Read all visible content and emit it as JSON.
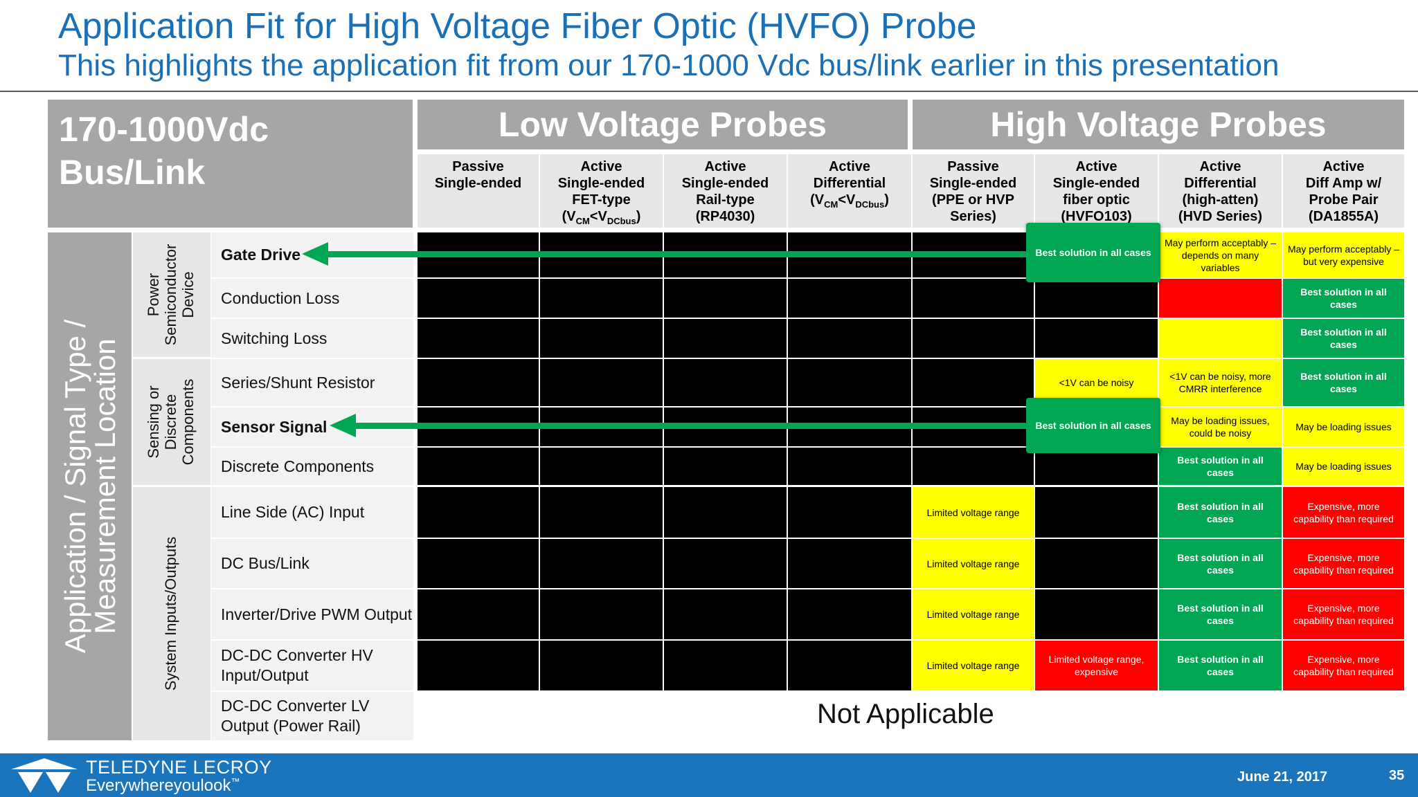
{
  "title": "Application Fit for High Voltage Fiber Optic (HVFO) Probe",
  "subtitle": "This highlights the application fit from our 170-1000 Vdc bus/link earlier in this presentation",
  "corner": {
    "line1": "170-1000Vdc",
    "line2": "Bus/Link"
  },
  "groups": {
    "low": "Low Voltage Probes",
    "high": "High Voltage Probes"
  },
  "columns": [
    {
      "lines": [
        "Passive",
        "Single-ended"
      ]
    },
    {
      "lines": [
        "Active",
        "Single-ended",
        "FET-type"
      ],
      "sub": {
        "pre": "(V",
        "s1": "CM",
        "mid": "<V",
        "s2": "DCbus",
        "post": ")"
      }
    },
    {
      "lines": [
        "Active",
        "Single-ended",
        "Rail-type",
        "(RP4030)"
      ]
    },
    {
      "lines": [
        "Active",
        "Differential"
      ],
      "sub": {
        "pre": "(V",
        "s1": "CM",
        "mid": "<V",
        "s2": "DCbus",
        "post": ")"
      }
    },
    {
      "lines": [
        "Passive",
        "Single-ended",
        "(PPE or HVP",
        "Series)"
      ]
    },
    {
      "lines": [
        "Active",
        "Single-ended",
        "fiber optic",
        "(HVFO103)"
      ]
    },
    {
      "lines": [
        "Active",
        "Differential",
        "(high-atten)",
        "(HVD Series)"
      ]
    },
    {
      "lines": [
        "Active",
        "Diff Amp w/",
        "Probe Pair",
        "(DA1855A)"
      ]
    }
  ],
  "vertical_label": {
    "line1": "Application / Signal Type /",
    "line2": "Measurement Location"
  },
  "row_groups": [
    {
      "line1": "Power",
      "line2": "Semiconductor",
      "line3": "Device"
    },
    {
      "line1": "Sensing or",
      "line2": "Discrete",
      "line3": "Components"
    },
    {
      "line1": "System Inputs/Outputs",
      "line2": "",
      "line3": ""
    }
  ],
  "rows": [
    {
      "label": "Gate Drive",
      "bold": true,
      "cells": [
        "K",
        "K",
        "K",
        "K",
        "K",
        "G:Best solution in all cases",
        "Y:May perform acceptably – depends on many variables",
        "Y:May perform acceptably – but very expensive"
      ]
    },
    {
      "label": "Conduction Loss",
      "bold": false,
      "cells": [
        "K",
        "K",
        "K",
        "K",
        "K",
        "K",
        "R:",
        "G:Best solution in all cases"
      ]
    },
    {
      "label": "Switching Loss",
      "bold": false,
      "cells": [
        "K",
        "K",
        "K",
        "K",
        "K",
        "K",
        "Y:",
        "G:Best solution in all cases"
      ]
    },
    {
      "label": "Series/Shunt Resistor",
      "bold": false,
      "cells": [
        "K",
        "K",
        "K",
        "K",
        "K",
        "Y:<1V can be noisy",
        "Y:<1V can be noisy, more CMRR interference",
        "G:Best solution in all cases"
      ]
    },
    {
      "label": "Sensor Signal",
      "bold": true,
      "cells": [
        "K",
        "K",
        "K",
        "K",
        "K",
        "G:Best solution in all cases",
        "Y:May be loading issues, could be noisy",
        "Y:May be loading issues"
      ]
    },
    {
      "label": "Discrete Components",
      "bold": false,
      "cells": [
        "K",
        "K",
        "K",
        "K",
        "K",
        "K",
        "G:Best solution in all cases",
        "Y:May be loading issues"
      ]
    },
    {
      "label": "Line Side (AC) Input",
      "bold": false,
      "cells": [
        "K",
        "K",
        "K",
        "K",
        "Y:Limited voltage range",
        "K",
        "G:Best solution in all cases",
        "R:Expensive, more capability than required"
      ]
    },
    {
      "label": "DC Bus/Link",
      "bold": false,
      "cells": [
        "K",
        "K",
        "K",
        "K",
        "Y:Limited voltage range",
        "K",
        "G:Best solution in all cases",
        "R:Expensive, more capability than required"
      ]
    },
    {
      "label": "Inverter/Drive PWM Output",
      "bold": false,
      "cells": [
        "K",
        "K",
        "K",
        "K",
        "Y:Limited voltage range",
        "K",
        "G:Best solution in all cases",
        "R:Expensive, more capability than required"
      ]
    },
    {
      "label": "DC-DC Converter HV Input/Output",
      "bold": false,
      "cells": [
        "K",
        "K",
        "K",
        "K",
        "Y:Limited voltage range",
        "R:Limited voltage range, expensive",
        "G:Best solution in all cases",
        "R:Expensive, more capability than required"
      ]
    },
    {
      "label": "DC-DC Converter LV Output (Power Rail)",
      "bold": false,
      "cells": []
    }
  ],
  "not_applicable": "Not Applicable",
  "footer": {
    "brand1": "TELEDYNE LECROY",
    "brand2": "Everywhereyoulook",
    "brand2_tm": "™",
    "date": "June 21, 2017",
    "page": "35"
  },
  "colors": {
    "accent": "#1b6fb5",
    "green": "#00a651",
    "yellow": "#ffff00",
    "red": "#ff0000",
    "header_gray": "#a6a6a6"
  }
}
